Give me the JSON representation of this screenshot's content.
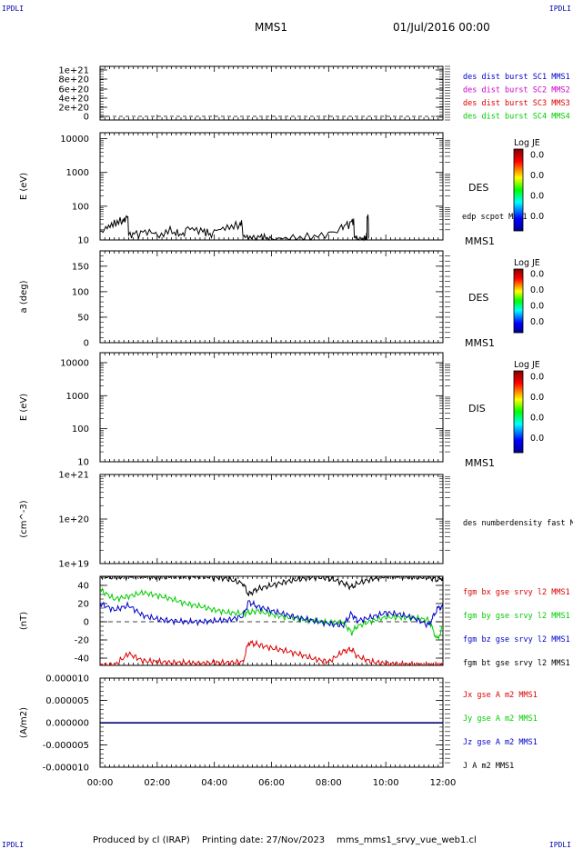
{
  "header": {
    "corner_label": "IPDLI",
    "spacecraft": "MMS1",
    "datetime": "01/Jul/2016 00:00"
  },
  "footer": {
    "produced_by": "Produced by cl (IRAP)",
    "printing_date": "Printing date: 27/Nov/2023",
    "plot_name": "mms_mms1_srvy_vue_web1.cl"
  },
  "colors": {
    "blue": "#0000cc",
    "magenta": "#cc00cc",
    "red": "#dd0000",
    "green": "#00cc00",
    "black": "#000000"
  },
  "chart_data": [
    {
      "type": "line",
      "yticks": [
        "1e+21",
        "8e+20",
        "6e+20",
        "4e+20",
        "2e+20",
        "0"
      ],
      "legend": [
        {
          "name": "des dist burst SC1 MMS1",
          "color": "#0000cc"
        },
        {
          "name": "des dist burst SC2 MMS2",
          "color": "#cc00cc"
        },
        {
          "name": "des dist burst SC3 MMS3",
          "color": "#dd0000"
        },
        {
          "name": "des dist burst SC4 MMS4",
          "color": "#00cc00"
        }
      ],
      "dashed_zero_line": true
    },
    {
      "type": "heatmap",
      "ylabel": "E (eV)",
      "yticks": [
        "10000",
        "1000",
        "100",
        "10"
      ],
      "ylim": [
        10,
        15000
      ],
      "yscale": "log",
      "instrument": "DES",
      "right_label": "MMS1",
      "overlay_label": "edp scpot MMS1",
      "colorbar": {
        "title": "Log JE",
        "ticks": [
          "0.0",
          "0.0",
          "0.0",
          "0.0"
        ]
      },
      "overlay_line": {
        "x_hours": [
          0.0,
          0.2,
          0.4,
          0.6,
          0.8,
          0.9,
          1.0,
          1.2,
          1.5,
          1.8,
          2.0,
          2.3,
          2.6,
          2.8,
          3.0,
          3.3,
          3.6,
          3.8,
          4.0,
          4.3,
          4.6,
          4.9,
          5.0,
          5.1,
          5.3,
          5.6,
          5.8,
          6.0,
          6.5,
          7.0,
          7.5,
          8.0,
          8.4,
          8.6,
          8.8,
          8.9,
          9.0,
          9.2,
          9.3,
          9.35,
          9.4
        ],
        "y_ev": [
          18,
          25,
          32,
          38,
          40,
          48,
          14,
          15,
          17,
          16,
          14,
          20,
          17,
          15,
          22,
          19,
          17,
          14,
          20,
          24,
          28,
          32,
          13,
          12,
          11,
          12,
          11,
          11,
          12,
          13,
          14,
          17,
          24,
          28,
          35,
          12,
          11,
          11,
          13,
          50,
          11
        ]
      }
    },
    {
      "type": "heatmap",
      "ylabel": "a (deg)",
      "yticks": [
        "150",
        "100",
        "50",
        "0"
      ],
      "ylim": [
        0,
        180
      ],
      "instrument": "DES",
      "right_label": "MMS1",
      "colorbar": {
        "title": "Log JE",
        "ticks": [
          "0.0",
          "0.0",
          "0.0",
          "0.0"
        ]
      }
    },
    {
      "type": "heatmap",
      "ylabel": "E (eV)",
      "yticks": [
        "10000",
        "1000",
        "100",
        "10"
      ],
      "ylim": [
        10,
        20000
      ],
      "yscale": "log",
      "instrument": "DIS",
      "right_label": "MMS1",
      "colorbar": {
        "title": "Log JE",
        "ticks": [
          "0.0",
          "0.0",
          "0.0",
          "0.0"
        ]
      }
    },
    {
      "type": "line",
      "ylabel": "(cm^-3)",
      "yticks": [
        "1e+21",
        "1e+20",
        "1e+19"
      ],
      "yscale": "log",
      "legend": [
        {
          "name": "des numberdensity fast M",
          "color": "#000000"
        }
      ]
    },
    {
      "type": "line",
      "ylabel": "(nT)",
      "yticks": [
        "40",
        "20",
        "0",
        "-20",
        "-40"
      ],
      "ylim": [
        -48,
        50
      ],
      "dashed_zero_line": true,
      "legend": [
        {
          "name": "fgm bx gse srvy l2 MMS1",
          "color": "#dd0000"
        },
        {
          "name": "fgm by gse srvy l2 MMS1",
          "color": "#00cc00"
        },
        {
          "name": "fgm bz gse srvy l2 MMS1",
          "color": "#0000cc"
        },
        {
          "name": "fgm bt gse srvy l2 MMS1",
          "color": "#000000"
        }
      ],
      "x_hours": [
        0.0,
        0.5,
        1.0,
        1.5,
        2.0,
        2.5,
        3.0,
        3.5,
        4.0,
        4.5,
        5.0,
        5.2,
        5.5,
        6.0,
        6.5,
        7.0,
        7.5,
        8.0,
        8.5,
        8.8,
        9.0,
        9.5,
        10.0,
        10.5,
        11.0,
        11.5,
        11.8,
        12.0
      ],
      "series": [
        {
          "name": "fgm bx gse srvy l2 MMS1",
          "color": "#dd0000",
          "values": [
            -48,
            -48,
            -35,
            -43,
            -44,
            -45,
            -45,
            -46,
            -45,
            -45,
            -44,
            -23,
            -25,
            -29,
            -32,
            -36,
            -41,
            -44,
            -33,
            -30,
            -38,
            -44,
            -46,
            -47,
            -47,
            -48,
            -48,
            -48
          ]
        },
        {
          "name": "fgm by gse srvy l2 MMS1",
          "color": "#00cc00",
          "values": [
            35,
            25,
            28,
            32,
            29,
            25,
            20,
            17,
            13,
            10,
            9,
            10,
            12,
            8,
            5,
            3,
            1,
            -1,
            0,
            -12,
            -5,
            1,
            5,
            5,
            4,
            2,
            -20,
            -5
          ]
        },
        {
          "name": "fgm bz gse srvy l2 MMS1",
          "color": "#0000cc",
          "values": [
            20,
            13,
            18,
            7,
            3,
            1,
            0,
            0,
            1,
            2,
            6,
            22,
            17,
            12,
            8,
            4,
            1,
            -2,
            -4,
            9,
            1,
            5,
            10,
            8,
            4,
            -4,
            14,
            18
          ]
        },
        {
          "name": "fgm bt gse srvy l2 MMS1",
          "color": "#000000",
          "values": [
            50,
            49,
            50,
            50,
            49,
            50,
            50,
            50,
            49,
            47,
            42,
            30,
            36,
            40,
            44,
            47,
            49,
            48,
            43,
            38,
            42,
            47,
            50,
            50,
            49,
            49,
            46,
            49
          ]
        }
      ]
    },
    {
      "type": "line",
      "ylabel": "(A/m2)",
      "yticks": [
        "0.000010",
        "0.000005",
        "0.000000",
        "-0.000005",
        "-0.000010"
      ],
      "ylim": [
        -1e-05,
        1e-05
      ],
      "legend": [
        {
          "name": "Jx gse A m2 MMS1",
          "color": "#dd0000"
        },
        {
          "name": "Jy gse A m2 MMS1",
          "color": "#00cc00"
        },
        {
          "name": "Jz gse A m2 MMS1",
          "color": "#0000cc"
        },
        {
          "name": "J A m2 MMS1",
          "color": "#000000"
        }
      ],
      "x_hours": [
        0,
        12
      ],
      "values": [
        0,
        0
      ]
    }
  ],
  "x_axis": {
    "ticks": [
      "00:00",
      "02:00",
      "04:00",
      "06:00",
      "08:00",
      "10:00",
      "12:00"
    ],
    "range_hours": [
      0,
      12
    ]
  }
}
